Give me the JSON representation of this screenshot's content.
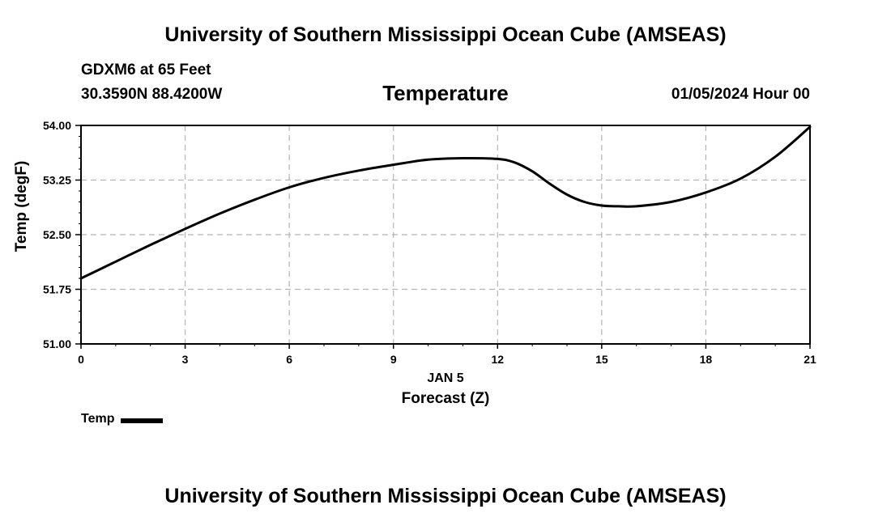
{
  "header": {
    "title": "University of Southern Mississippi Ocean Cube (AMSEAS)",
    "station": "GDXM6 at 65 Feet",
    "coords": "30.3590N  88.4200W",
    "variable": "Temperature",
    "datetime": "01/05/2024 Hour 00"
  },
  "footer": {
    "title": "University of Southern Mississippi Ocean Cube (AMSEAS)"
  },
  "legend": {
    "label": "Temp"
  },
  "chart_data": {
    "type": "line",
    "title": "Temperature",
    "xlabel": "Forecast (Z)",
    "date_label": "JAN 5",
    "ylabel": "Temp (degF)",
    "xlim": [
      0,
      21
    ],
    "ylim": [
      51.0,
      54.0
    ],
    "x_ticks": [
      0,
      3,
      6,
      9,
      12,
      15,
      18,
      21
    ],
    "y_ticks": [
      "51.00",
      "51.75",
      "52.50",
      "53.25",
      "54.00"
    ],
    "grid": true,
    "legend_position": "bottom-left",
    "series": [
      {
        "name": "Temp",
        "color": "#000000",
        "x": [
          0,
          1,
          2,
          3,
          4,
          5,
          6,
          7,
          8,
          9,
          10,
          11,
          12,
          12.5,
          13,
          13.5,
          14,
          14.5,
          15,
          15.5,
          16,
          17,
          18,
          19,
          20,
          21
        ],
        "y": [
          51.9,
          52.13,
          52.36,
          52.58,
          52.79,
          52.98,
          53.15,
          53.28,
          53.38,
          53.46,
          53.53,
          53.55,
          53.54,
          53.49,
          53.37,
          53.2,
          53.05,
          52.95,
          52.9,
          52.89,
          52.89,
          52.95,
          53.08,
          53.27,
          53.57,
          53.98
        ]
      }
    ]
  }
}
